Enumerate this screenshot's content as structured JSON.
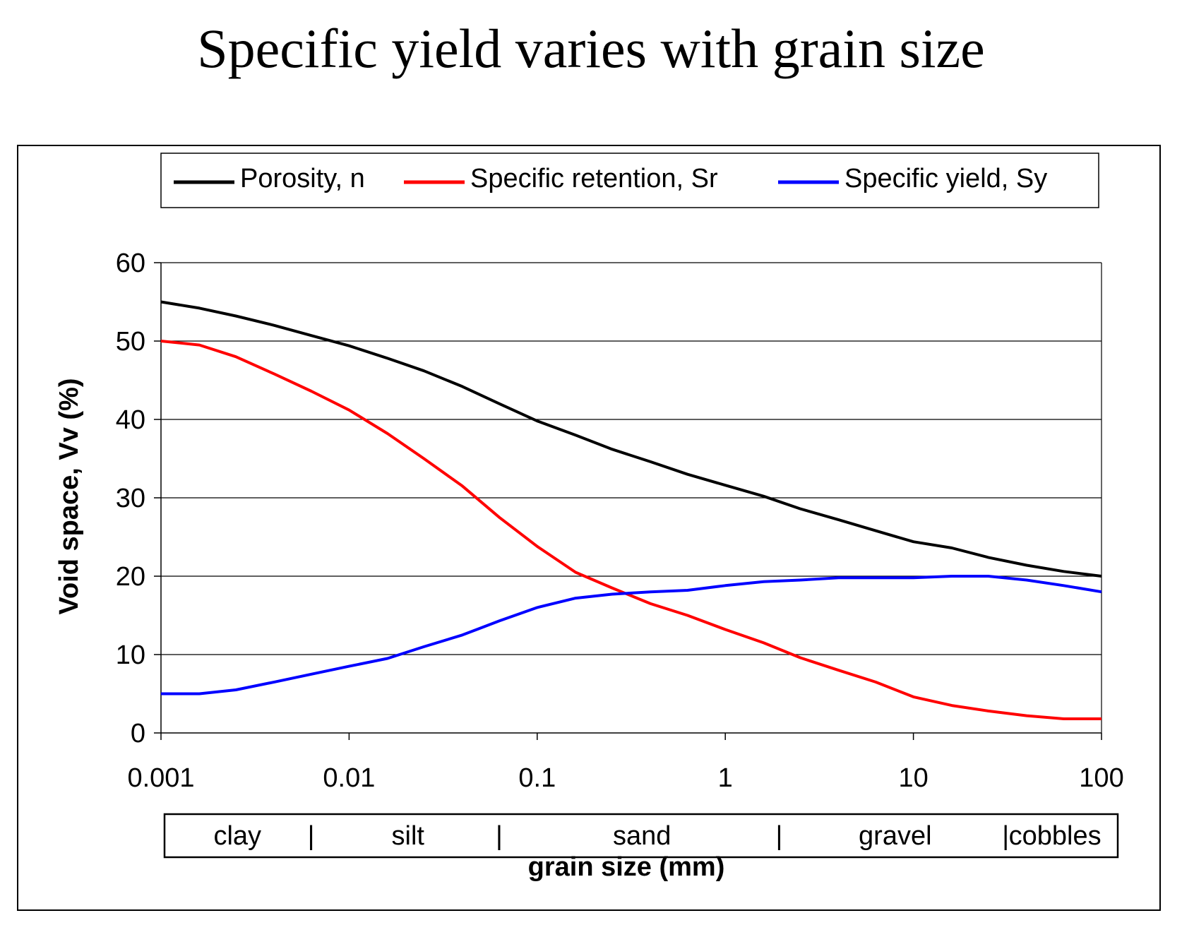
{
  "title": "Specific yield varies with grain size",
  "chart_data": {
    "type": "line",
    "title": "Specific yield varies with grain size",
    "xlabel": "grain size (mm)",
    "ylabel": "Void space, Vv (%)",
    "xscale": "log",
    "xlim": [
      0.001,
      100
    ],
    "ylim": [
      0,
      60
    ],
    "x_ticks": [
      0.001,
      0.01,
      0.1,
      1,
      10,
      100
    ],
    "x_tick_labels": [
      "0.001",
      "0.01",
      "0.1",
      "1",
      "10",
      "100"
    ],
    "y_ticks": [
      0,
      10,
      20,
      30,
      40,
      50,
      60
    ],
    "y_tick_labels": [
      "0",
      "10",
      "20",
      "30",
      "40",
      "50",
      "60"
    ],
    "grid": "horizontal",
    "legend_position": "top",
    "grain_classes": [
      {
        "label": "clay",
        "from": 0.001,
        "to": 0.0065
      },
      {
        "label": "silt",
        "from": 0.0065,
        "to": 0.065
      },
      {
        "label": "sand",
        "from": 0.065,
        "to": 2
      },
      {
        "label": "gravel",
        "from": 2,
        "to": 32
      },
      {
        "label": "cobbles",
        "from": 32,
        "to": 100
      }
    ],
    "class_separator": "|",
    "x": [
      0.001,
      0.0016,
      0.0025,
      0.004,
      0.0063,
      0.01,
      0.016,
      0.025,
      0.04,
      0.063,
      0.1,
      0.16,
      0.25,
      0.4,
      0.63,
      1,
      1.6,
      2.5,
      4,
      6.3,
      10,
      16,
      25,
      40,
      63,
      100
    ],
    "series": [
      {
        "name": "Porosity, n",
        "color": "#000000",
        "values": [
          55,
          54.2,
          53.2,
          52,
          50.7,
          49.4,
          47.8,
          46.2,
          44.2,
          42,
          39.8,
          38,
          36.2,
          34.6,
          33,
          31.6,
          30.2,
          28.6,
          27.2,
          25.8,
          24.4,
          23.6,
          22.4,
          21.4,
          20.6,
          20
        ]
      },
      {
        "name": "Specific retention, Sr",
        "color": "#ff0000",
        "values": [
          50,
          49.5,
          48,
          45.8,
          43.6,
          41.2,
          38.2,
          35,
          31.5,
          27.5,
          23.8,
          20.5,
          18.5,
          16.5,
          15,
          13.2,
          11.5,
          9.6,
          8,
          6.5,
          4.6,
          3.5,
          2.8,
          2.2,
          1.8,
          1.8
        ]
      },
      {
        "name": "Specific yield, Sy",
        "color": "#0000ff",
        "values": [
          5,
          5,
          5.5,
          6.5,
          7.5,
          8.5,
          9.5,
          11,
          12.5,
          14.3,
          16,
          17.2,
          17.7,
          18,
          18.2,
          18.8,
          19.3,
          19.5,
          19.8,
          19.8,
          19.8,
          20,
          20,
          19.5,
          18.8,
          18
        ]
      }
    ]
  }
}
